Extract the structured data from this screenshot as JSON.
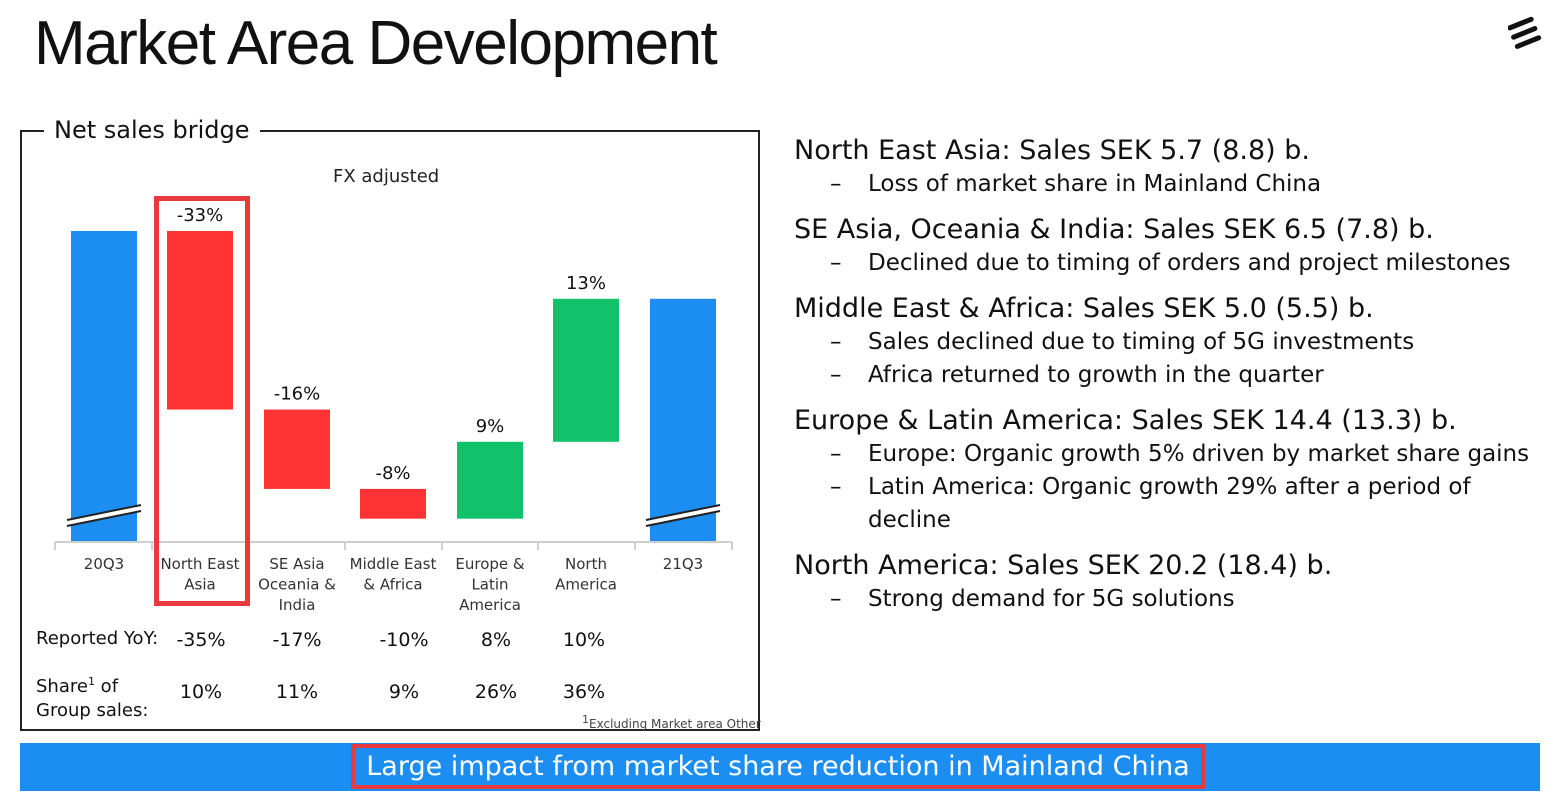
{
  "title": "Market Area Development",
  "panel": {
    "title": "Net sales bridge",
    "subtitle": "FX adjusted",
    "footnote": "Excluding Market area Other",
    "footnote_mark": "1"
  },
  "chart_data": {
    "type": "bar",
    "subtype": "waterfall",
    "title": "Net sales bridge",
    "subtitle": "FX adjusted",
    "categories": [
      "20Q3",
      "North East Asia",
      "SE Asia Oceania & India",
      "Middle East & Africa",
      "Europe & Latin America",
      "North America",
      "21Q3"
    ],
    "category_lines": [
      [
        "20Q3"
      ],
      [
        "North East",
        "Asia"
      ],
      [
        "SE Asia",
        "Oceania &",
        "India"
      ],
      [
        "Middle East",
        "& Africa"
      ],
      [
        "Europe &",
        "Latin",
        "America"
      ],
      [
        "North",
        "America"
      ],
      [
        "21Q3"
      ]
    ],
    "steps": [
      {
        "category": "20Q3",
        "kind": "total",
        "label": "",
        "start": 0,
        "end": 100
      },
      {
        "category": "North East Asia",
        "kind": "decrease",
        "label": "-33%",
        "start": 100,
        "end": 78.4
      },
      {
        "category": "SE Asia Oceania & India",
        "kind": "decrease",
        "label": "-16%",
        "start": 78.4,
        "end": 68.8
      },
      {
        "category": "Middle East & Africa",
        "kind": "decrease",
        "label": "-8%",
        "start": 68.8,
        "end": 65.2
      },
      {
        "category": "Europe & Latin America",
        "kind": "increase",
        "label": "9%",
        "start": 65.2,
        "end": 74.5
      },
      {
        "category": "North America",
        "kind": "increase",
        "label": "13%",
        "start": 74.5,
        "end": 91.8
      },
      {
        "category": "21Q3",
        "kind": "total",
        "label": "",
        "start": 0,
        "end": 91.8
      }
    ],
    "y_axis_break": true,
    "colors": {
      "total": "#1c8ef2",
      "decrease": "#ff3333",
      "increase": "#12c26b"
    },
    "highlighted_category": "North East Asia",
    "table": {
      "reported_yoy_label": "Reported YoY:",
      "reported_yoy": [
        "-35%",
        "-17%",
        "-10%",
        "8%",
        "10%"
      ],
      "share_label_1": "Share",
      "share_label_sup": "1",
      "share_label_2": " of",
      "share_label_3": "Group sales:",
      "share": [
        "10%",
        "11%",
        "9%",
        "26%",
        "36%"
      ]
    }
  },
  "regions": [
    {
      "heading": "North East Asia: Sales SEK 5.7 (8.8) b.",
      "points": [
        "Loss of market share in Mainland China"
      ]
    },
    {
      "heading": "SE Asia, Oceania & India: Sales SEK 6.5 (7.8) b.",
      "points": [
        "Declined due to timing of orders and project milestones"
      ]
    },
    {
      "heading": "Middle East & Africa: Sales SEK 5.0 (5.5) b.",
      "points": [
        "Sales declined due to timing of 5G investments",
        "Africa returned to growth in the quarter"
      ]
    },
    {
      "heading": "Europe & Latin America: Sales SEK 14.4 (13.3) b.",
      "points": [
        "Europe: Organic growth 5% driven by market share gains",
        "Latin America: Organic growth 29% after a period of decline"
      ]
    },
    {
      "heading": "North America: Sales SEK 20.2 (18.4) b.",
      "points": [
        "Strong demand for 5G solutions"
      ]
    }
  ],
  "dash": "–",
  "banner": {
    "text": "Large impact from market share reduction in Mainland China",
    "color": "#1c8ef2"
  },
  "logo": {
    "icon": "ericsson-logo-icon"
  }
}
